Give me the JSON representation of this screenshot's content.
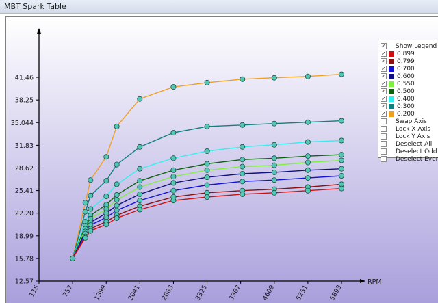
{
  "window": {
    "title": "MBT Spark Table"
  },
  "colors": {
    "bg_top": "#ffffff",
    "bg_bottom": "#a99fdc",
    "axis": "#000000",
    "marker_fill": "#52c8b4",
    "marker_stroke": "#1a4a44"
  },
  "legend": {
    "series_items": [
      {
        "label": "0.899",
        "color": "#d01010",
        "checked": "✓"
      },
      {
        "label": "0.799",
        "color": "#8b1010",
        "checked": "✓"
      },
      {
        "label": "0.700",
        "color": "#1010d8",
        "checked": "✓"
      },
      {
        "label": "0.600",
        "color": "#101080",
        "checked": "✓"
      },
      {
        "label": "0.550",
        "color": "#80f040",
        "checked": "✓"
      },
      {
        "label": "0.500",
        "color": "#106010",
        "checked": "✓"
      },
      {
        "label": "0.400",
        "color": "#30f0f0",
        "checked": "✓"
      },
      {
        "label": "0.300",
        "color": "#108080",
        "checked": "✓"
      },
      {
        "label": "0.200",
        "color": "#f0a020",
        "checked": "✓"
      }
    ],
    "show_legend": {
      "label": "Show Legend",
      "checked": "✓"
    },
    "options": [
      {
        "label": "Swap Axis"
      },
      {
        "label": "Lock X Axis"
      },
      {
        "label": "Lock Y Axis"
      },
      {
        "label": "Deselect All"
      },
      {
        "label": "Deselect Odd"
      },
      {
        "label": "Deselect Even"
      }
    ]
  },
  "chart_data": {
    "type": "line",
    "title": "",
    "xlabel": "RPM",
    "ylabel": "",
    "x_ticks": [
      "115",
      "757",
      "1399",
      "2041",
      "2683",
      "3325",
      "3967",
      "4609",
      "5251",
      "5893"
    ],
    "y_ticks": [
      "12.57",
      "15.78",
      "18.99",
      "22.20",
      "25.41",
      "28.62",
      "31.83",
      "35.044",
      "38.25",
      "41.46"
    ],
    "xlim": [
      115,
      5893
    ],
    "ylim": [
      12.57,
      44.67
    ],
    "grid": false,
    "legend_position": "top-right",
    "x": [
      757,
      1000,
      1100,
      1400,
      1600,
      2041,
      2683,
      3325,
      4000,
      4609,
      5251,
      5893
    ],
    "series": [
      {
        "name": "0.899",
        "values": [
          15.78,
          18.7,
          19.7,
          20.6,
          21.5,
          22.7,
          24.0,
          24.5,
          24.9,
          25.1,
          25.4,
          25.7
        ]
      },
      {
        "name": "0.799",
        "values": [
          15.78,
          18.9,
          20.0,
          21.0,
          21.9,
          23.2,
          24.5,
          25.1,
          25.4,
          25.6,
          25.9,
          26.3
        ]
      },
      {
        "name": "0.700",
        "values": [
          15.78,
          19.3,
          20.5,
          21.6,
          22.6,
          24.0,
          25.4,
          26.2,
          26.7,
          26.9,
          27.2,
          27.5
        ]
      },
      {
        "name": "0.600",
        "values": [
          15.78,
          19.6,
          20.9,
          22.2,
          23.3,
          24.9,
          26.5,
          27.3,
          27.8,
          28.0,
          28.3,
          28.5
        ]
      },
      {
        "name": "0.550",
        "values": [
          15.78,
          20.0,
          21.4,
          22.8,
          24.1,
          25.9,
          27.4,
          28.3,
          28.8,
          29.0,
          29.4,
          29.7
        ]
      },
      {
        "name": "0.500",
        "values": [
          15.78,
          20.4,
          21.9,
          23.4,
          24.8,
          26.8,
          28.3,
          29.2,
          29.8,
          30.0,
          30.3,
          30.5
        ]
      },
      {
        "name": "0.400",
        "values": [
          15.78,
          21.0,
          22.8,
          24.6,
          26.3,
          28.5,
          30.0,
          31.0,
          31.6,
          31.9,
          32.3,
          32.5
        ]
      },
      {
        "name": "0.300",
        "values": [
          15.78,
          22.4,
          24.7,
          26.8,
          29.1,
          31.6,
          33.6,
          34.5,
          34.7,
          34.9,
          35.1,
          35.3
        ]
      },
      {
        "name": "0.200",
        "values": [
          15.78,
          23.7,
          26.9,
          30.2,
          34.5,
          38.4,
          40.1,
          40.7,
          41.2,
          41.4,
          41.6,
          41.9
        ]
      }
    ]
  }
}
